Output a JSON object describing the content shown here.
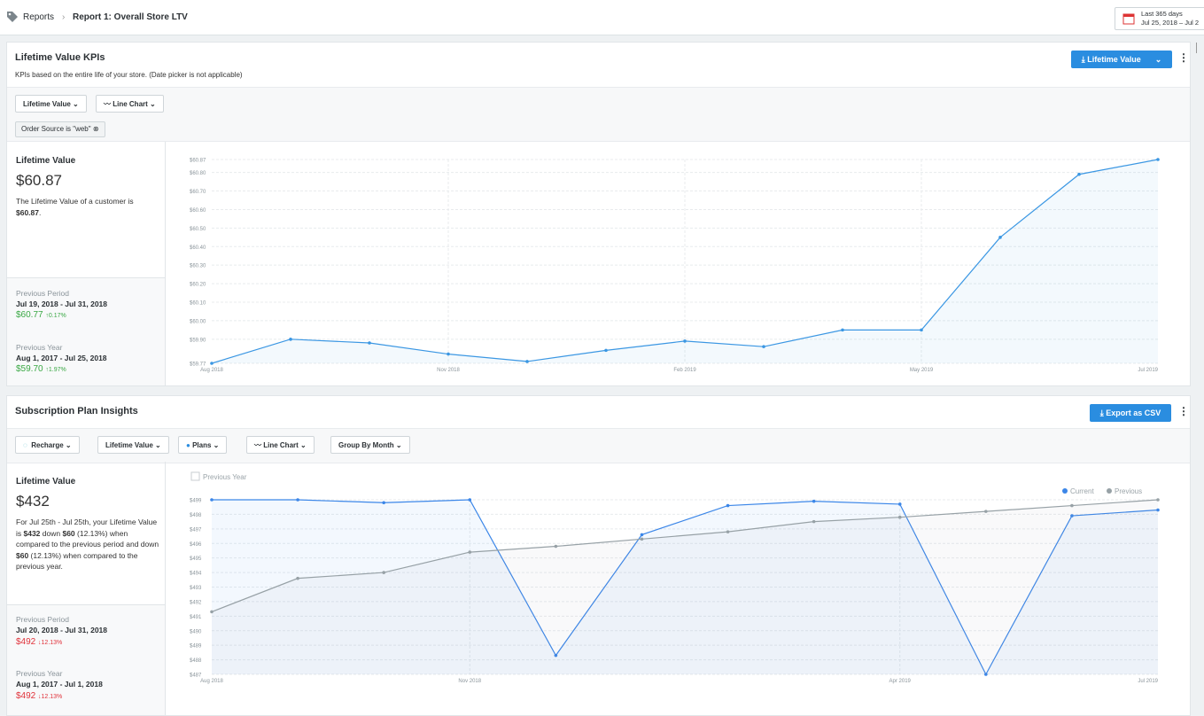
{
  "breadcrumb": [
    "Reports",
    "Report 1: Overall Store LTV"
  ],
  "date_picker": {
    "range": "Last 365 days",
    "dates": "Jul 25, 2018 – Jul 2"
  },
  "panels": [
    {
      "title": "Lifetime Value KPIs",
      "subtitle": "KPIs based on the entire life of your store. (Date picker is not applicable)",
      "button": "Lifetime Value",
      "controls": [
        "Lifetime Value",
        "Line Chart"
      ],
      "filter": "Order Source is \"web\"",
      "kpi": {
        "label": "Lifetime Value",
        "value": "$60.87",
        "description": [
          "The Lifetime Value of a customer is ",
          "$60.87",
          "."
        ]
      },
      "comparisons": [
        {
          "label": "Previous Period",
          "dates": "Jul 19, 2018 - Jul 31, 2018",
          "value": "$60.77",
          "change": "↑0.17%"
        },
        {
          "label": "Previous Year",
          "dates": "Aug 1, 2017 - Jul 25, 2018",
          "value": "$59.70",
          "change": "↑1.97%"
        }
      ]
    },
    {
      "title": "Subscription Plan Insights",
      "button": "Export as CSV",
      "controls": [
        "Recharge",
        "Lifetime Value",
        "Plans",
        "Line Chart",
        "Group By Month"
      ],
      "kpi": {
        "label": "Lifetime Value",
        "value": "$432",
        "description": [
          "For Jul 25th - Jul 25th, your Lifetime Value is ",
          "$432",
          " down ",
          "$60",
          " (12.13%) when compared to the previous period and down ",
          "$60",
          " (12.13%) when compared to the previous year."
        ]
      },
      "comparisons": [
        {
          "label": "Previous Period",
          "dates": "Jul 20, 2018 - Jul 31, 2018",
          "value": "$492",
          "change": "↓12.13%"
        },
        {
          "label": "Previous Year",
          "dates": "Aug 1, 2017 - Jul 1, 2018",
          "value": "$492",
          "change": "↓12.13%"
        }
      ]
    }
  ],
  "chart_data": [
    {
      "type": "line",
      "categories": [
        "Aug 2018",
        null,
        null,
        "Nov 2018",
        null,
        null,
        "Feb 2019",
        null,
        null,
        "May 2019",
        null,
        null,
        "Jul 2019"
      ],
      "series": [
        {
          "name": "Lifetime Value",
          "color": "#3b97e3",
          "values": [
            59.77,
            59.9,
            59.88,
            59.82,
            59.78,
            59.84,
            59.89,
            59.86,
            59.95,
            59.95,
            60.45,
            60.79,
            60.87
          ]
        }
      ],
      "ylim": [
        59.77,
        60.87
      ],
      "yticks": [
        {
          "value": 59.77,
          "label": "$59.77"
        },
        {
          "value": 59.9,
          "label": "$59.90"
        },
        {
          "value": 60.0,
          "label": "$60.00"
        },
        {
          "value": 60.1,
          "label": "$60.10"
        },
        {
          "value": 60.2,
          "label": "$60.20"
        },
        {
          "value": 60.3,
          "label": "$60.30"
        },
        {
          "value": 60.4,
          "label": "$60.40"
        },
        {
          "value": 60.5,
          "label": "$60.50"
        },
        {
          "value": 60.6,
          "label": "$60.60"
        },
        {
          "value": 60.7,
          "label": "$60.70"
        },
        {
          "value": 60.8,
          "label": "$60.80"
        },
        {
          "value": 60.87,
          "label": "$60.87"
        }
      ],
      "grid": true,
      "legend": false
    },
    {
      "type": "line",
      "checkbox": "Previous Year",
      "categories": [
        "Aug 2018",
        null,
        null,
        "Nov 2018",
        null,
        null,
        null,
        null,
        "Apr 2019",
        null,
        null,
        "Jul 2019"
      ],
      "series": [
        {
          "name": "Current",
          "color": "#3b86e8",
          "values": [
            499.0,
            499.0,
            498.8,
            499.0,
            488.3,
            496.6,
            498.6,
            498.9,
            498.7,
            487.0,
            497.9,
            498.3
          ]
        },
        {
          "name": "Previous",
          "color": "#97a1a6",
          "values": [
            491.3,
            493.6,
            494.0,
            495.4,
            495.8,
            496.3,
            496.8,
            497.5,
            497.8,
            498.2,
            498.6,
            499.0
          ]
        }
      ],
      "ylim": [
        487,
        499
      ],
      "yticks": [
        {
          "value": 487,
          "label": "$487"
        },
        {
          "value": 488,
          "label": "$488"
        },
        {
          "value": 489,
          "label": "$489"
        },
        {
          "value": 490,
          "label": "$490"
        },
        {
          "value": 491,
          "label": "$491"
        },
        {
          "value": 492,
          "label": "$492"
        },
        {
          "value": 493,
          "label": "$493"
        },
        {
          "value": 494,
          "label": "$494"
        },
        {
          "value": 495,
          "label": "$495"
        },
        {
          "value": 496,
          "label": "$496"
        },
        {
          "value": 497,
          "label": "$497"
        },
        {
          "value": 498,
          "label": "$498"
        },
        {
          "value": 499,
          "label": "$499"
        }
      ],
      "grid": true,
      "legend": "top-right"
    }
  ]
}
